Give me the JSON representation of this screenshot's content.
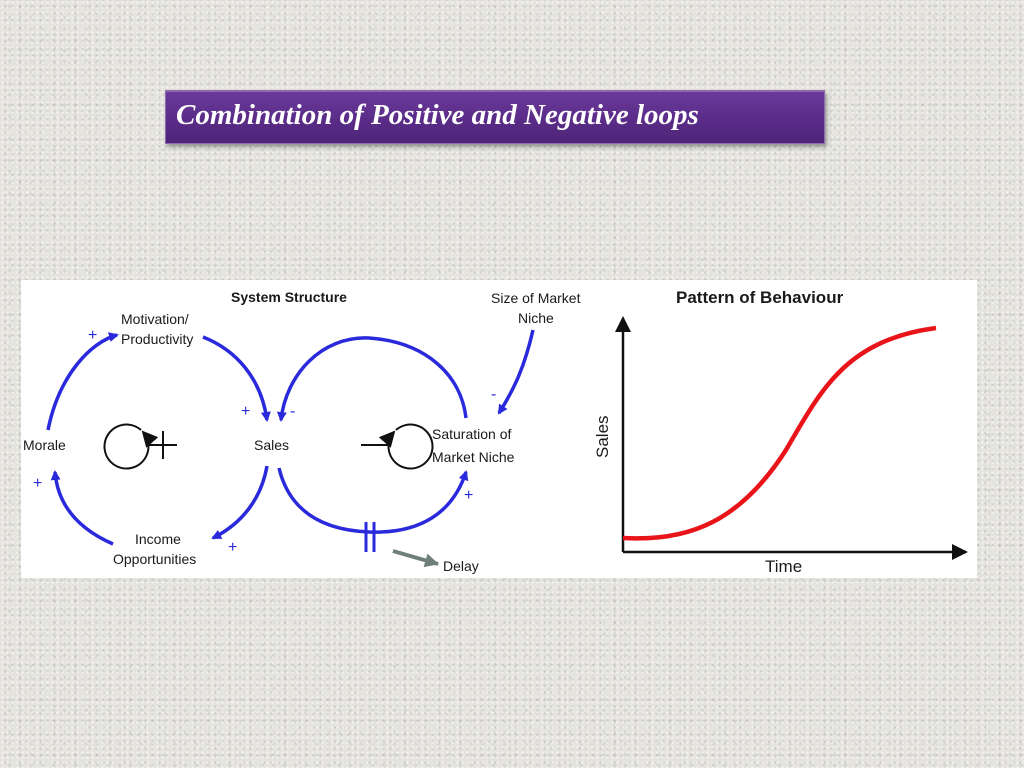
{
  "slide": {
    "title": "Combination of Positive and Negative loops"
  },
  "system_structure": {
    "heading": "System Structure",
    "nodes": {
      "motivation": [
        "Motivation/",
        "Productivity"
      ],
      "morale": "Morale",
      "sales": "Sales",
      "income": [
        "Income",
        "Opportunities"
      ],
      "saturation": [
        "Saturation of",
        "Market Niche"
      ],
      "size_niche": [
        "Size of Market",
        "Niche"
      ],
      "delay": "Delay"
    },
    "polarities": {
      "morale_to_motivation": "+",
      "income_to_morale": "+",
      "motivation_to_sales": "+",
      "saturation_to_sales": "-",
      "sales_to_income": "+",
      "sales_to_saturation": "+",
      "size_to_saturation": "-"
    },
    "loop_signs": {
      "reinforcing": "+",
      "balancing": "−"
    },
    "colors": {
      "arrows": "#2a2adc",
      "delay_arrow": "#6f7f7a"
    }
  },
  "pattern_of_behaviour": {
    "heading": "Pattern of Behaviour",
    "x_axis_label": "Time",
    "y_axis_label": "Sales",
    "curve_shape": "s-shaped growth",
    "curve_color": "#e8141a"
  }
}
